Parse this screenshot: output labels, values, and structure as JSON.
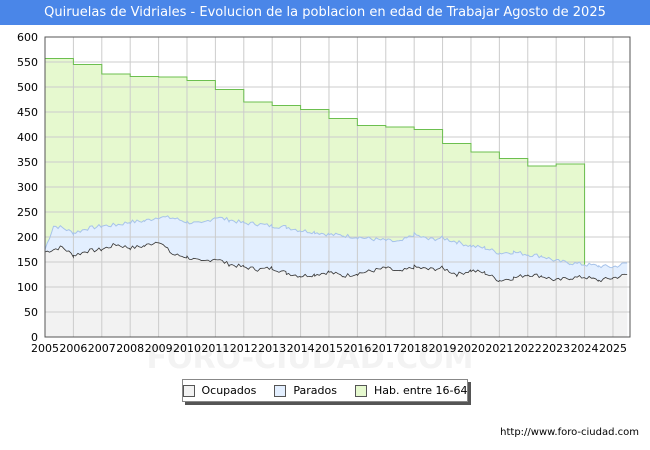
{
  "title": "Quiruelas de Vidriales - Evolucion de la poblacion en edad de Trabajar Agosto de 2025",
  "source": "http://www.foro-ciudad.com",
  "watermark": "FORO-CIUDAD.COM",
  "colors": {
    "title_bg": "#4a86e8",
    "hab_fill": "#e6f9cf",
    "hab_line": "#6cbf4f",
    "parados_fill": "#e3efff",
    "parados_line": "#a7c3ea",
    "ocupados_fill": "#f2f2f2",
    "ocupados_line": "#333333",
    "grid": "#cccccc"
  },
  "chart_data": {
    "type": "area",
    "xlabel": "",
    "ylabel": "",
    "xlim": [
      2005,
      2025.6
    ],
    "ylim": [
      0,
      600
    ],
    "grid": true,
    "legend_position": "bottom",
    "x_ticks": [
      "2005",
      "2006",
      "2007",
      "2008",
      "2009",
      "2010",
      "2011",
      "2012",
      "2013",
      "2014",
      "2015",
      "2016",
      "2017",
      "2018",
      "2019",
      "2020",
      "2021",
      "2022",
      "2023",
      "2024",
      "2025"
    ],
    "y_ticks": [
      0,
      50,
      100,
      150,
      200,
      250,
      300,
      350,
      400,
      450,
      500,
      550,
      600
    ],
    "series": [
      {
        "name": "Hab. entre 16-64",
        "x": [
          2005,
          2006,
          2007,
          2008,
          2009,
          2010,
          2011,
          2012,
          2013,
          2014,
          2015,
          2016,
          2017,
          2018,
          2019,
          2020,
          2021,
          2022,
          2023,
          2024
        ],
        "values": [
          557,
          545,
          526,
          521,
          520,
          513,
          495,
          470,
          463,
          455,
          437,
          423,
          420,
          415,
          387,
          370,
          357,
          342,
          346,
          null
        ]
      },
      {
        "name": "Parados",
        "x": [
          2005.0,
          2005.3,
          2005.6,
          2006.0,
          2006.5,
          2007.0,
          2007.5,
          2008.0,
          2008.5,
          2009.0,
          2009.5,
          2010.0,
          2010.5,
          2011.0,
          2011.5,
          2012.0,
          2012.5,
          2013.0,
          2013.5,
          2014.0,
          2014.5,
          2015.0,
          2015.5,
          2016.0,
          2016.5,
          2017.0,
          2017.5,
          2018.0,
          2018.5,
          2019.0,
          2019.5,
          2020.0,
          2020.5,
          2021.0,
          2021.5,
          2022.0,
          2022.5,
          2023.0,
          2023.5,
          2024.0,
          2024.5,
          2025.0,
          2025.5
        ],
        "values": [
          175,
          222,
          219,
          208,
          217,
          222,
          224,
          230,
          232,
          240,
          238,
          230,
          226,
          240,
          234,
          228,
          226,
          222,
          220,
          213,
          210,
          205,
          203,
          200,
          196,
          193,
          190,
          205,
          195,
          198,
          190,
          182,
          178,
          168,
          170,
          165,
          162,
          152,
          148,
          145,
          142,
          140,
          148
        ]
      },
      {
        "name": "Ocupados",
        "x": [
          2005.0,
          2005.3,
          2005.6,
          2006.0,
          2006.5,
          2007.0,
          2007.5,
          2008.0,
          2008.5,
          2009.0,
          2009.5,
          2010.0,
          2010.5,
          2011.0,
          2011.5,
          2012.0,
          2012.5,
          2013.0,
          2013.5,
          2014.0,
          2014.5,
          2015.0,
          2015.5,
          2016.0,
          2016.5,
          2017.0,
          2017.5,
          2018.0,
          2018.5,
          2019.0,
          2019.5,
          2020.0,
          2020.5,
          2021.0,
          2021.5,
          2022.0,
          2022.5,
          2023.0,
          2023.5,
          2024.0,
          2024.5,
          2025.0,
          2025.5
        ],
        "values": [
          170,
          175,
          180,
          163,
          172,
          175,
          185,
          178,
          182,
          192,
          165,
          160,
          150,
          157,
          145,
          140,
          135,
          138,
          128,
          122,
          125,
          130,
          122,
          127,
          132,
          138,
          130,
          140,
          135,
          138,
          125,
          133,
          128,
          113,
          118,
          125,
          122,
          113,
          118,
          120,
          113,
          118,
          125
        ]
      }
    ]
  },
  "legend": [
    {
      "label": "Ocupados"
    },
    {
      "label": "Parados"
    },
    {
      "label": "Hab. entre 16-64"
    }
  ]
}
